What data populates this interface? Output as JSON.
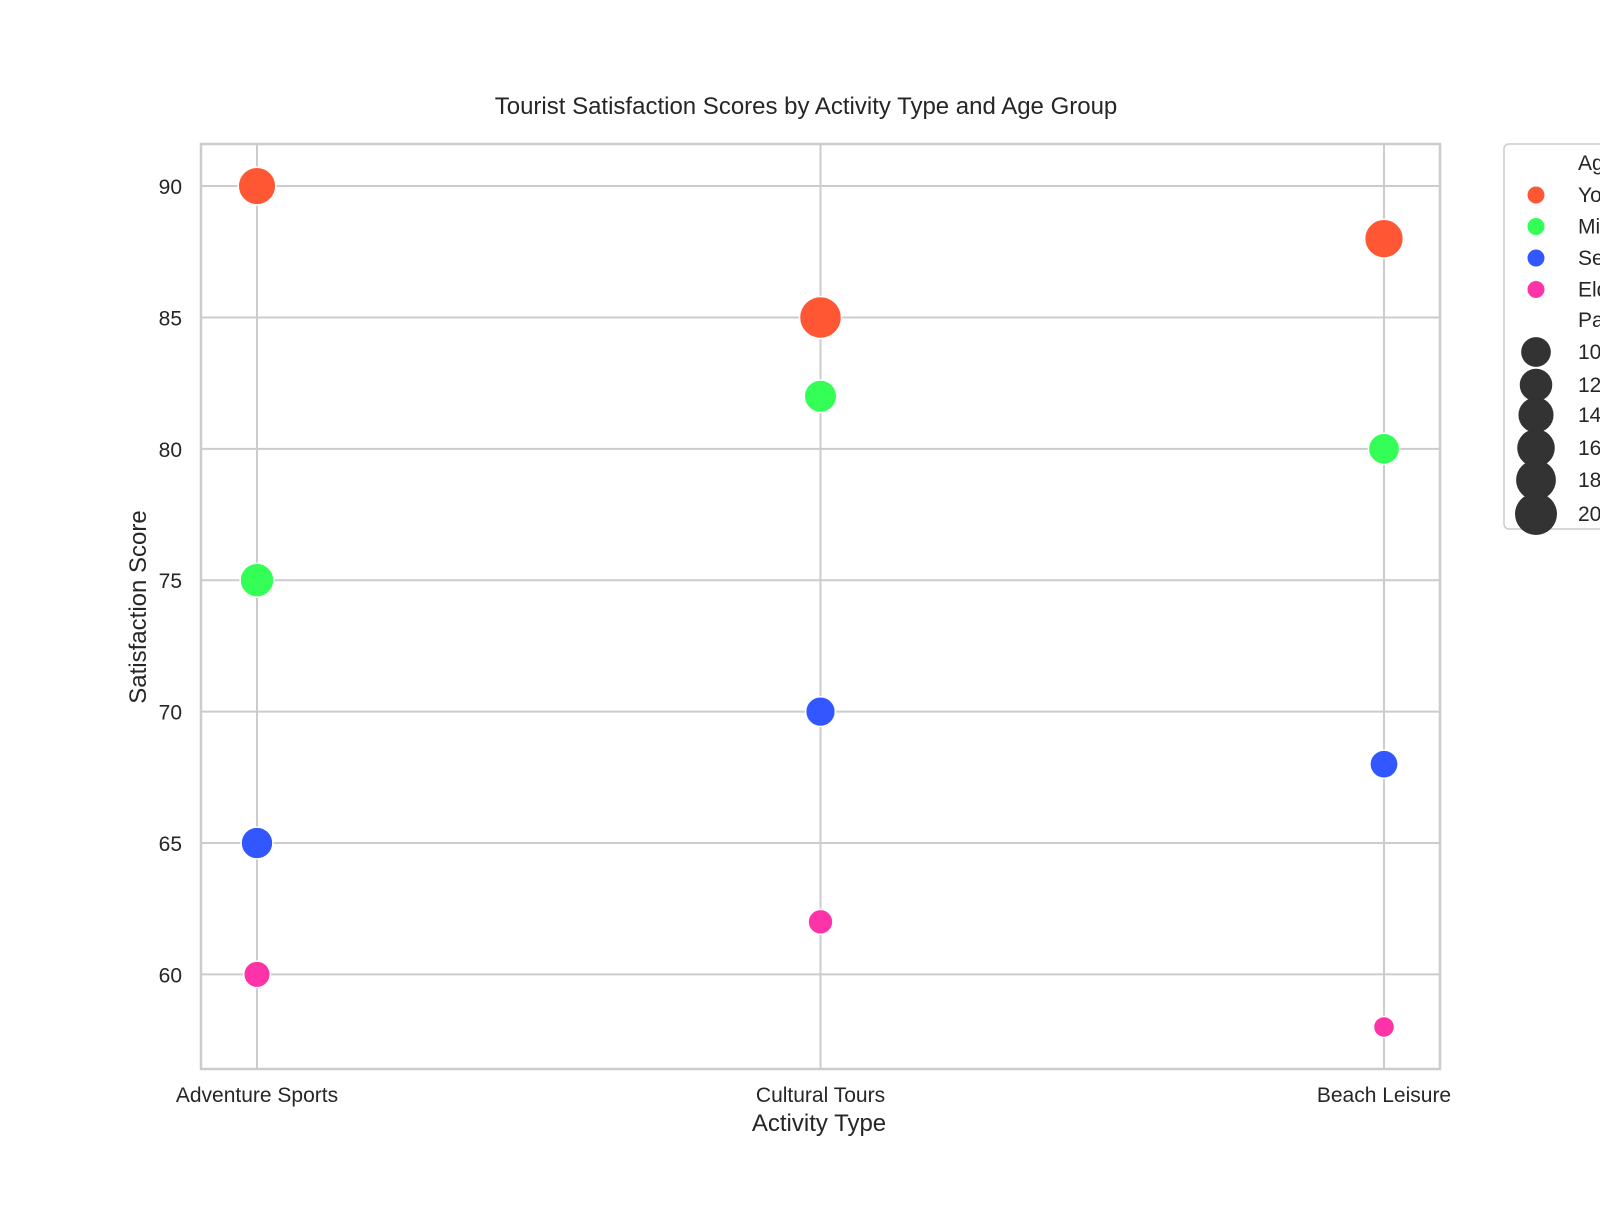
{
  "chart_data": {
    "type": "scatter",
    "title": "Tourist Satisfaction Scores by Activity Type and Age Group",
    "xlabel": "Activity Type",
    "ylabel": "Satisfaction Score",
    "categories": [
      "Adventure Sports",
      "Cultural Tours",
      "Beach Leisure"
    ],
    "ylim": [
      56.4,
      91.6
    ],
    "yticks": [
      "60",
      "65",
      "70",
      "75",
      "80",
      "85",
      "90"
    ],
    "grid": true,
    "legend_placement": "outside-right",
    "series": [
      {
        "name": "Yo",
        "color": "#FF5733",
        "values": [
          90,
          85,
          88
        ],
        "sizes": [
          160,
          200,
          170
        ]
      },
      {
        "name": "Mi",
        "color": "#33FF57",
        "values": [
          75,
          82,
          80
        ],
        "sizes": [
          130,
          120,
          110
        ]
      },
      {
        "name": "Se",
        "color": "#3357FF",
        "values": [
          65,
          70,
          68
        ],
        "sizes": [
          115,
          100,
          90
        ]
      },
      {
        "name": "Eld",
        "color": "#FF33A8",
        "values": [
          60,
          62,
          58
        ],
        "sizes": [
          80,
          70,
          50
        ]
      }
    ],
    "legend": {
      "hue_title": "Ag",
      "size_title": "Pa",
      "size_entries": [
        {
          "label": "10",
          "size": 100
        },
        {
          "label": "12",
          "size": 120
        },
        {
          "label": "14",
          "size": 140
        },
        {
          "label": "16",
          "size": 160
        },
        {
          "label": "18",
          "size": 180
        },
        {
          "label": "20",
          "size": 200
        }
      ]
    }
  }
}
